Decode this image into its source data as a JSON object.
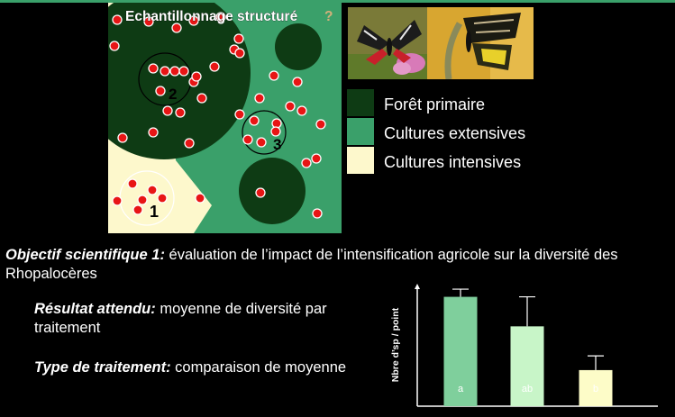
{
  "map": {
    "title": "Echantillonnage structuré",
    "title_suffix": "?",
    "zone_labels": [
      "1",
      "2",
      "3"
    ],
    "colors": {
      "forest": "#0e3b14",
      "extensive": "#3aa06a",
      "intensive": "#fdf8cc",
      "point": "#e81515"
    }
  },
  "legend": {
    "items": [
      {
        "label": "Forêt primaire",
        "color": "#0e3b14"
      },
      {
        "label": "Cultures extensives",
        "color": "#3aa06a"
      },
      {
        "label": "Cultures intensives",
        "color": "#fdf8cc"
      }
    ]
  },
  "objective": {
    "label": "Objectif scientifique 1:",
    "text": " évaluation de l’impact de l’intensification agricole sur la diversité des Rhopalocères"
  },
  "result": {
    "label": "Résultat attendu:",
    "text": " moyenne de diversité par traitement"
  },
  "treatment": {
    "label": "Type de traitement:",
    "text": " comparaison de moyenne"
  },
  "chart_data": {
    "type": "bar",
    "ylabel": "Nbre d’sp / point",
    "categories": [
      "a",
      "ab",
      "b"
    ],
    "values": [
      1.0,
      0.73,
      0.33
    ],
    "errors": [
      0.07,
      0.27,
      0.13
    ],
    "ylim": [
      0,
      1.12
    ],
    "colors": [
      "#7fcf9c",
      "#c8f5c8",
      "#fdfcc8"
    ]
  }
}
